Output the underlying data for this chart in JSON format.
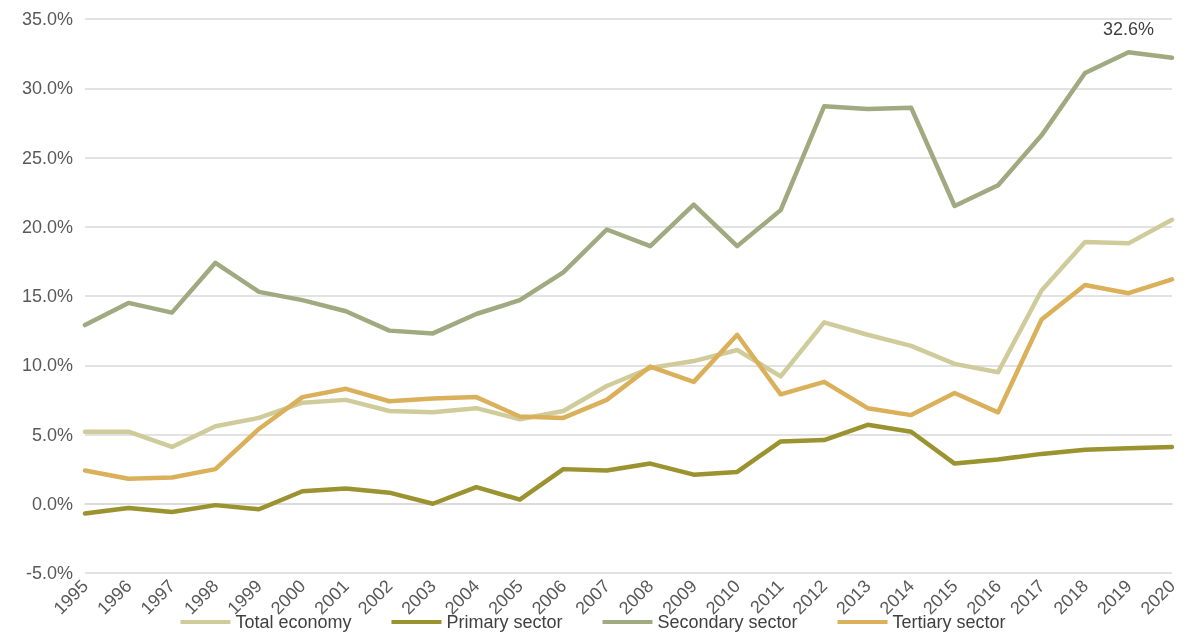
{
  "chart_data": {
    "type": "line",
    "categories": [
      "1995",
      "1996",
      "1997",
      "1998",
      "1999",
      "2000",
      "2001",
      "2002",
      "2003",
      "2004",
      "2005",
      "2006",
      "2007",
      "2008",
      "2009",
      "2010",
      "2011",
      "2012",
      "2013",
      "2014",
      "2015",
      "2016",
      "2017",
      "2018",
      "2019",
      "2020"
    ],
    "series": [
      {
        "name": "Total economy",
        "color": "#cfcb9b",
        "values": [
          5.2,
          5.2,
          4.1,
          5.6,
          6.2,
          7.3,
          7.5,
          6.7,
          6.6,
          6.9,
          6.1,
          6.7,
          8.5,
          9.8,
          10.3,
          11.1,
          9.2,
          13.1,
          12.2,
          11.4,
          10.1,
          9.5,
          15.4,
          18.9,
          18.8,
          20.5
        ]
      },
      {
        "name": "Primary sector",
        "color": "#9b9230",
        "values": [
          -0.7,
          -0.3,
          -0.6,
          -0.1,
          -0.4,
          0.9,
          1.1,
          0.8,
          0.0,
          1.2,
          0.3,
          2.5,
          2.4,
          2.9,
          2.1,
          2.3,
          4.5,
          4.6,
          5.7,
          5.2,
          2.9,
          3.2,
          3.6,
          3.9,
          4.0,
          4.1
        ]
      },
      {
        "name": "Secondary sector",
        "color": "#a0a97f",
        "values": [
          12.9,
          14.5,
          13.8,
          17.4,
          15.3,
          14.7,
          13.9,
          12.5,
          12.3,
          13.7,
          14.7,
          16.7,
          19.8,
          18.6,
          21.6,
          18.6,
          21.2,
          28.7,
          28.5,
          28.6,
          21.5,
          23.0,
          26.6,
          31.1,
          32.6,
          32.2
        ],
        "value_labels": [
          null,
          null,
          null,
          null,
          null,
          null,
          null,
          null,
          null,
          null,
          null,
          null,
          null,
          null,
          null,
          null,
          null,
          null,
          null,
          null,
          null,
          null,
          null,
          null,
          "32.6%",
          null
        ]
      },
      {
        "name": "Tertiary sector",
        "color": "#dbb05a",
        "values": [
          2.4,
          1.8,
          1.9,
          2.5,
          5.4,
          7.7,
          8.3,
          7.4,
          7.6,
          7.7,
          6.3,
          6.2,
          7.5,
          9.9,
          8.8,
          12.2,
          7.9,
          8.8,
          6.9,
          6.4,
          8.0,
          6.6,
          13.3,
          15.8,
          15.2,
          16.2
        ]
      }
    ],
    "ylim": [
      -5,
      35
    ],
    "yticks": [
      {
        "value": -5,
        "label": "-5.0%"
      },
      {
        "value": 0,
        "label": "0.0%"
      },
      {
        "value": 5,
        "label": "5.0%"
      },
      {
        "value": 10,
        "label": "10.0%"
      },
      {
        "value": 15,
        "label": "15.0%"
      },
      {
        "value": 20,
        "label": "20.0%"
      },
      {
        "value": 25,
        "label": "25.0%"
      },
      {
        "value": 30,
        "label": "30.0%"
      },
      {
        "value": 35,
        "label": "35.0%"
      }
    ],
    "grid": "y",
    "legend": "bottom",
    "marker": "none",
    "line_style": "solid"
  }
}
